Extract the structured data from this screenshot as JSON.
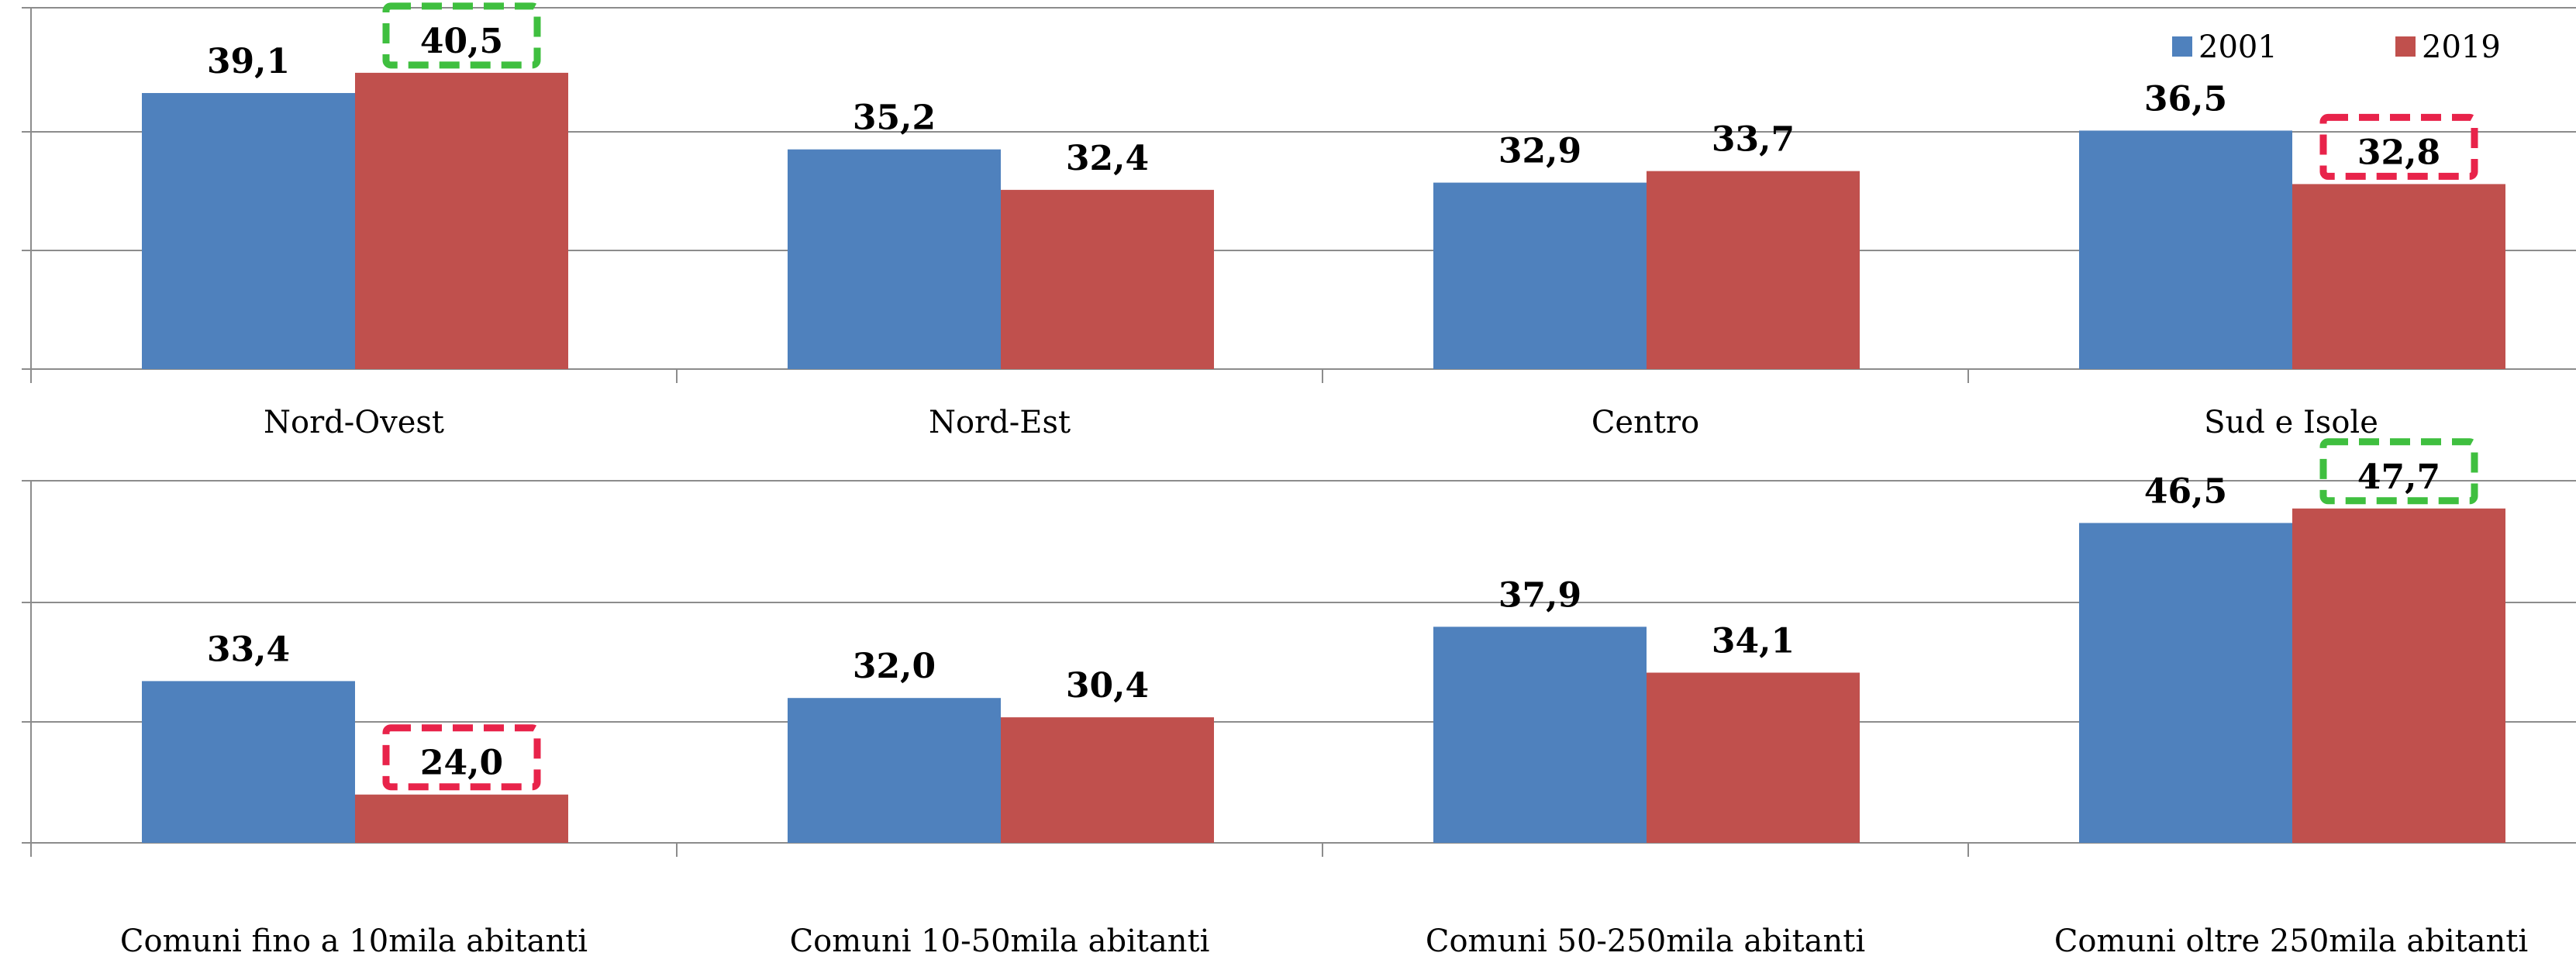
{
  "chart_data": [
    {
      "type": "bar",
      "categories": [
        "Nord-Ovest",
        "Nord-Est",
        "Centro",
        "Sud e Isole"
      ],
      "series": [
        {
          "name": "2001",
          "values": [
            39.1,
            35.2,
            32.9,
            36.5
          ],
          "labels": [
            "39,1",
            "35,2",
            "32,9",
            "36,5"
          ]
        },
        {
          "name": "2019",
          "values": [
            40.5,
            32.4,
            33.7,
            32.8
          ],
          "labels": [
            "40,5",
            "32,4",
            "33,7",
            "32,8"
          ]
        }
      ],
      "highlights": [
        {
          "category": 0,
          "series": 1,
          "style": "green-dashed"
        },
        {
          "category": 3,
          "series": 1,
          "style": "red-dashed"
        }
      ],
      "ylim": [
        20,
        45
      ],
      "grid": true,
      "legend": "top-right"
    },
    {
      "type": "bar",
      "categories": [
        "Comuni fino a 10mila abitanti",
        "Comuni 10-50mila abitanti",
        "Comuni 50-250mila abitanti",
        "Comuni oltre 250mila abitanti"
      ],
      "series": [
        {
          "name": "2001",
          "values": [
            33.4,
            32.0,
            37.9,
            46.5
          ],
          "labels": [
            "33,4",
            "32,0",
            "37,9",
            "46,5"
          ]
        },
        {
          "name": "2019",
          "values": [
            24.0,
            30.4,
            34.1,
            47.7
          ],
          "labels": [
            "24,0",
            "30,4",
            "34,1",
            "47,7"
          ]
        }
      ],
      "highlights": [
        {
          "category": 0,
          "series": 1,
          "style": "red-dashed"
        },
        {
          "category": 3,
          "series": 1,
          "style": "green-dashed"
        }
      ],
      "ylim": [
        20,
        50
      ],
      "grid": true,
      "legend": "none"
    }
  ],
  "colors": {
    "2001": "#4f81bd",
    "2019": "#c0504d",
    "highlight_green": "#3fbf3f",
    "highlight_red": "#e8234a",
    "grid": "#8c8c8c"
  }
}
